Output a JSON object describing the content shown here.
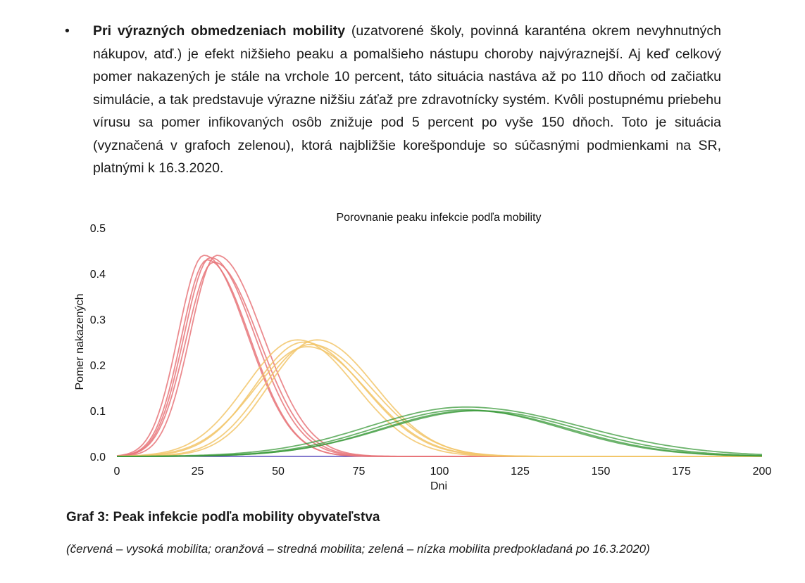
{
  "paragraph": {
    "bullet": "•",
    "bold_lead": "Pri výrazných obmedzeniach mobility",
    "text": " (uzatvorené školy, povinná karanténa okrem nevyhnutných nákupov, atď.) je efekt nižšieho peaku a pomalšieho nástupu choroby najvýraznejší. Aj keď celkový pomer nakazených je stále na vrchole 10 percent, táto situácia nastáva až po 110 dňoch od začiatku simulácie, a tak predstavuje výrazne nižšiu záťaž pre zdravotnícky systém. Kvôli postupnému priebehu vírusu sa pomer infikovaných osôb znižuje pod 5 percent po vyše 150 dňoch. Toto je situácia (vyznačená v grafoch zelenou), ktorá najbližšie korešponduje so súčasnými podmienkami na SR, platnými k 16.3.2020."
  },
  "chart_data": {
    "type": "line",
    "title": "Porovnanie peaku infekcie podľa mobility",
    "xlabel": "Dni",
    "ylabel": "Pomer nakazených",
    "xlim": [
      0,
      200
    ],
    "ylim": [
      0,
      0.5
    ],
    "xticks": [
      "0",
      "25",
      "50",
      "75",
      "100",
      "125",
      "150",
      "175",
      "200"
    ],
    "yticks": [
      "0.0",
      "0.1",
      "0.2",
      "0.3",
      "0.4",
      "0.5"
    ],
    "grid": false,
    "colors": {
      "red": "#e8767a",
      "orange": "#f2c56a",
      "green": "#3a9a3a",
      "baseline": "#3b2bb0"
    },
    "series": [
      {
        "group": "red",
        "peak_day": 27,
        "peak": 0.44,
        "rise": 8.0,
        "fall": 13.5
      },
      {
        "group": "red",
        "peak_day": 29,
        "peak": 0.435,
        "rise": 8.2,
        "fall": 13.8
      },
      {
        "group": "red",
        "peak_day": 30,
        "peak": 0.425,
        "rise": 8.5,
        "fall": 14.0
      },
      {
        "group": "red",
        "peak_day": 31,
        "peak": 0.44,
        "rise": 8.3,
        "fall": 14.2
      },
      {
        "group": "red",
        "peak_day": 28,
        "peak": 0.43,
        "rise": 8.0,
        "fall": 13.2
      },
      {
        "group": "orange",
        "peak_day": 56,
        "peak": 0.255,
        "rise": 16,
        "fall": 18
      },
      {
        "group": "orange",
        "peak_day": 58,
        "peak": 0.25,
        "rise": 15.5,
        "fall": 18.5
      },
      {
        "group": "orange",
        "peak_day": 60,
        "peak": 0.245,
        "rise": 15,
        "fall": 19
      },
      {
        "group": "orange",
        "peak_day": 62,
        "peak": 0.255,
        "rise": 15,
        "fall": 18
      },
      {
        "group": "orange",
        "peak_day": 59,
        "peak": 0.24,
        "rise": 16.5,
        "fall": 18.5
      },
      {
        "group": "green",
        "peak_day": 108,
        "peak": 0.102,
        "rise": 28,
        "fall": 30
      },
      {
        "group": "green",
        "peak_day": 110,
        "peak": 0.1,
        "rise": 28,
        "fall": 30
      },
      {
        "group": "green",
        "peak_day": 112,
        "peak": 0.1,
        "rise": 29,
        "fall": 31
      },
      {
        "group": "green",
        "peak_day": 108,
        "peak": 0.108,
        "rise": 30,
        "fall": 36
      }
    ]
  },
  "caption": "Graf 3: Peak infekcie podľa mobility obyvateľstva",
  "note": "(červená – vysoká mobilita; oranžová – stredná mobilita; zelená – nízka mobilita predpokladaná po 16.3.2020)"
}
